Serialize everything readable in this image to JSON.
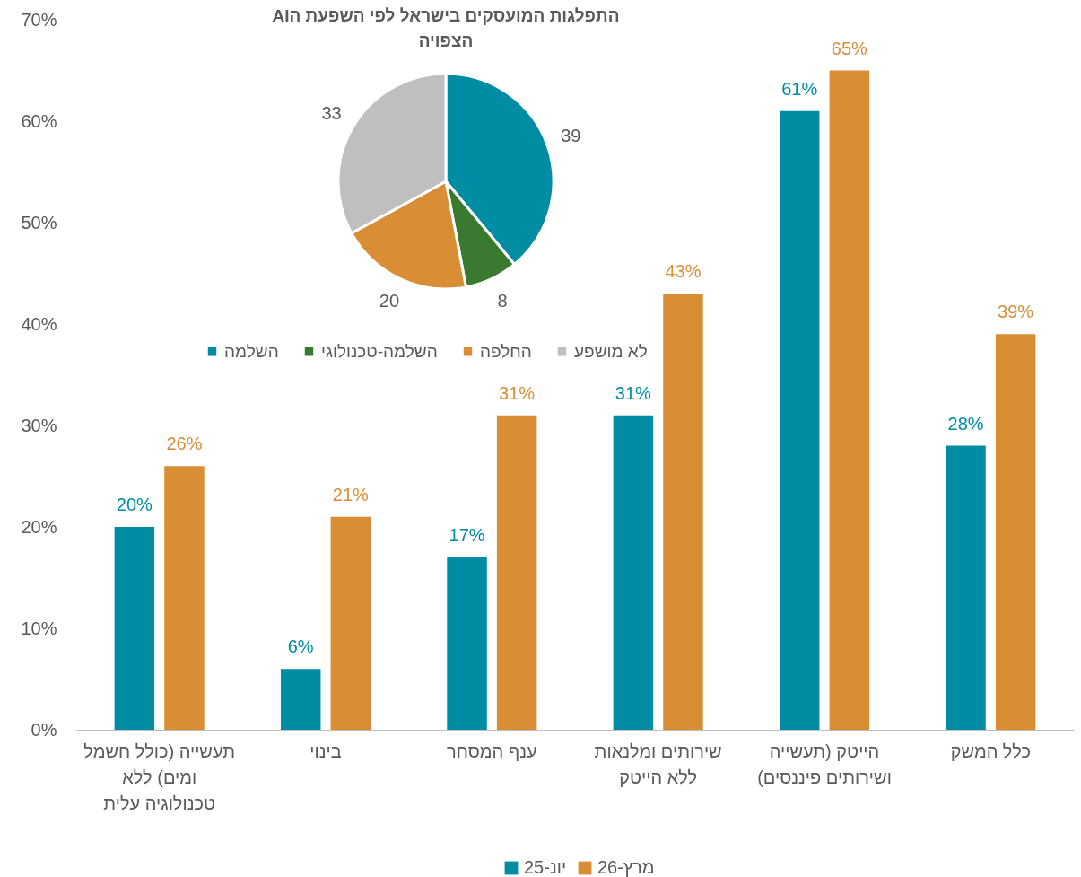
{
  "chart_data": [
    {
      "type": "bar",
      "categories": [
        "תעשייה (כולל חשמל ומים) ללא טכנולוגיה עלית",
        "בינוי",
        "ענף המסחר",
        "שירותים ומלנאות ללא הייטק",
        "הייטק (תעשייה ושירותים פיננסים)",
        "כלל המשק"
      ],
      "series": [
        {
          "name": "יונ-25",
          "color": "#008ca3",
          "values": [
            20,
            6,
            17,
            31,
            61,
            28
          ],
          "value_labels": [
            "20%",
            "6%",
            "17%",
            "31%",
            "61%",
            "28%"
          ]
        },
        {
          "name": "מרץ-26",
          "color": "#d98e35",
          "values": [
            26,
            21,
            31,
            43,
            65,
            39
          ],
          "value_labels": [
            "26%",
            "21%",
            "31%",
            "43%",
            "65%",
            "39%"
          ]
        }
      ],
      "ylim": [
        0,
        70
      ],
      "yticks": [
        {
          "value": 0,
          "label": "0%"
        },
        {
          "value": 10,
          "label": "10%"
        },
        {
          "value": 20,
          "label": "20%"
        },
        {
          "value": 30,
          "label": "30%"
        },
        {
          "value": 40,
          "label": "40%"
        },
        {
          "value": 50,
          "label": "50%"
        },
        {
          "value": 60,
          "label": "60%"
        },
        {
          "value": 70,
          "label": "70%"
        }
      ],
      "grid": false,
      "legend": "bottom"
    },
    {
      "type": "pie",
      "title": "התפלגות המועסקים בישראל לפי השפעת הAI הצפויה",
      "categories": [
        "השלמה",
        "השלמה-טכנולוגי",
        "החלפה",
        "לא מושפע"
      ],
      "values": [
        39,
        8,
        20,
        33
      ],
      "colors": [
        "#008ca3",
        "#3a7a30",
        "#d98e35",
        "#bfbfbf"
      ],
      "data_labels": true,
      "legend": "bottom"
    }
  ]
}
